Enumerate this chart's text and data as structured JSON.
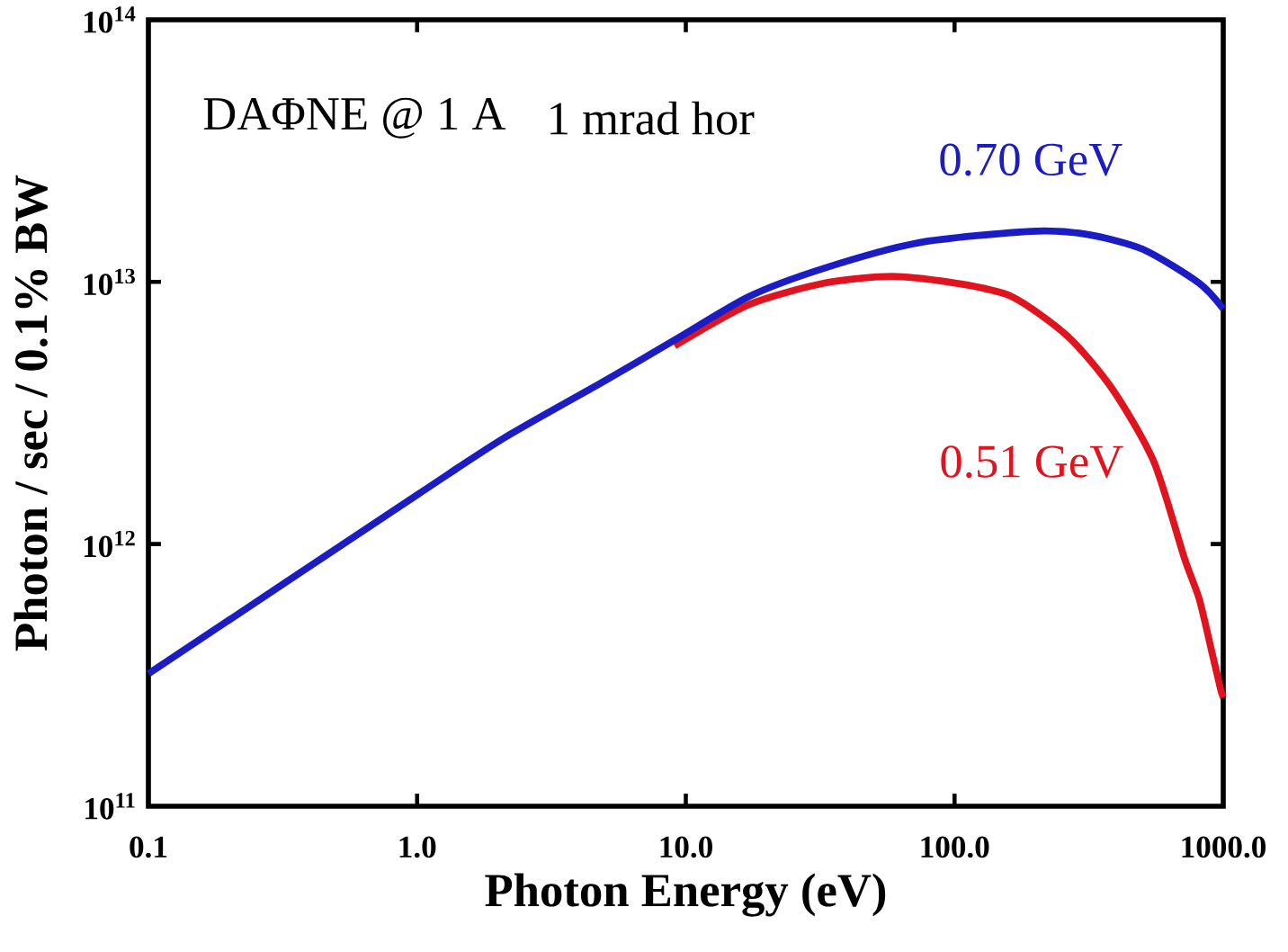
{
  "chart_data": {
    "type": "line",
    "xlabel": "Photon Energy (eV)",
    "ylabel": "Photon / sec / 0.1% BW",
    "annotations": [
      "DAΦNE @ 1 A",
      "1 mrad hor"
    ],
    "log": "xy",
    "line_style": "solid",
    "xlim": [
      0.1,
      1000
    ],
    "ylim": [
      100000000000.0,
      100000000000000.0
    ],
    "xticks": [
      {
        "value": 0.1,
        "label": "0.1"
      },
      {
        "value": 1,
        "label": "1.0"
      },
      {
        "value": 10,
        "label": "10.0"
      },
      {
        "value": 100,
        "label": "100.0"
      },
      {
        "value": 1000,
        "label": "1000.0"
      }
    ],
    "yticks": [
      {
        "value": 100000000000.0,
        "label": "10$^{11}$"
      },
      {
        "value": 1000000000000.0,
        "label": "10$^{12}$"
      },
      {
        "value": 10000000000000.0,
        "label": "10$^{13}$"
      },
      {
        "value": 100000000000000.0,
        "label": "10$^{14}$"
      }
    ],
    "series": [
      {
        "name": "0.51 GeV",
        "color": "#e0141e",
        "x": [
          9.08,
          17.2,
          32.9,
          58.6,
          100.6,
          163,
          264,
          387,
          552,
          718,
          813,
          906,
          977,
          1000
        ],
        "values": [
          5700000000000.0,
          8200000000000.0,
          9900000000000.0,
          10500000000000.0,
          9900000000000.0,
          8800000000000.0,
          6200000000000.0,
          3900000000000.0,
          2060000000000.0,
          880000000000.0,
          620000000000.0,
          390000000000.0,
          280000000000.0,
          260000000000.0
        ]
      },
      {
        "name": "0.70 GeV",
        "color": "#1c1cc4",
        "x": [
          0.1,
          1.0,
          2.12,
          5,
          9.08,
          17.2,
          32.9,
          73.3,
          192,
          310,
          504,
          813,
          1000
        ],
        "values": [
          320000000000.0,
          1540000000000.0,
          2550000000000.0,
          4200000000000.0,
          6000000000000.0,
          8800000000000.0,
          11300000000000.0,
          14100000000000.0,
          15600000000000.0,
          15200000000000.0,
          13300000000000.0,
          9900000000000.0,
          7900000000000.0
        ]
      }
    ]
  }
}
